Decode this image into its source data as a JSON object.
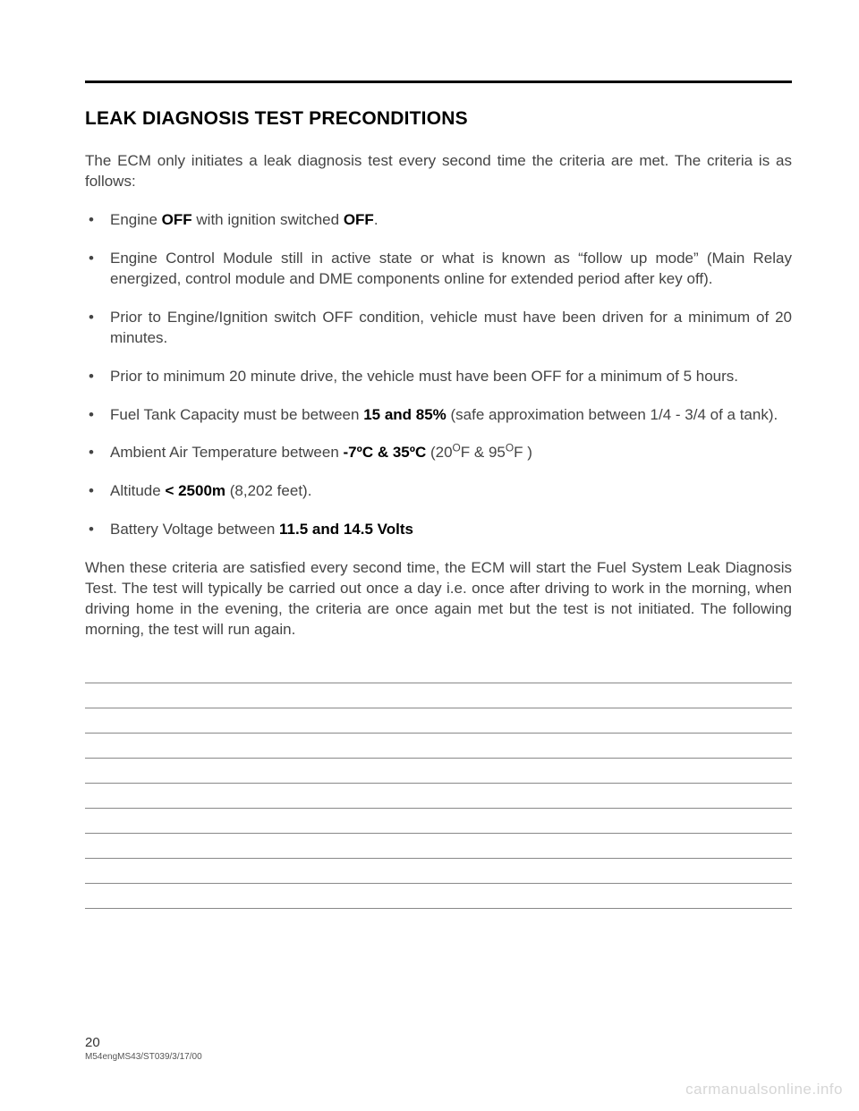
{
  "heading": "LEAK DIAGNOSIS TEST PRECONDITIONS",
  "intro": "The ECM only initiates a leak diagnosis test every second time the criteria are met.  The criteria is as follows:",
  "bullets": {
    "b1_a": "Engine ",
    "b1_off1": "OFF",
    "b1_b": " with ignition switched ",
    "b1_off2": "OFF",
    "b1_c": ".",
    "b2": "Engine Control Module still in active state or what is known as “follow up mode” (Main Relay energized, control module and DME components online for extended period after key off).",
    "b3": "Prior to Engine/Ignition switch OFF condition, vehicle must have been driven for a minimum of 20 minutes.",
    "b4": "Prior to minimum 20 minute drive, the vehicle must have been OFF for a minimum of 5 hours.",
    "b5_a": "Fuel Tank Capacity must be between ",
    "b5_bold": "15 and 85%",
    "b5_b": " (safe approximation between 1/4 - 3/4 of a tank).",
    "b6_a": "Ambient Air Temperature between ",
    "b6_bold": "-7ºC & 35ºC",
    "b6_b": "  (20",
    "b6_sup1": "O",
    "b6_c": "F & 95",
    "b6_sup2": "O",
    "b6_d": "F )",
    "b7_a": "Altitude ",
    "b7_bold": "< 2500m",
    "b7_b": " (8,202 feet).",
    "b8_a": "Battery Voltage between ",
    "b8_bold": "11.5 and 14.5 Volts"
  },
  "closing": "When these criteria are satisfied every second time, the ECM will start the Fuel System Leak Diagnosis Test.  The test will typically be carried out once a day i.e. once after driving to work in the morning,  when driving home in the evening, the criteria are once again met but the test is not initiated.  The following morning, the test will run again.",
  "page_num": "20",
  "doc_id": "M54engMS43/ST039/3/17/00",
  "watermark": "carmanualsonline.info",
  "notes_line_count": 10
}
